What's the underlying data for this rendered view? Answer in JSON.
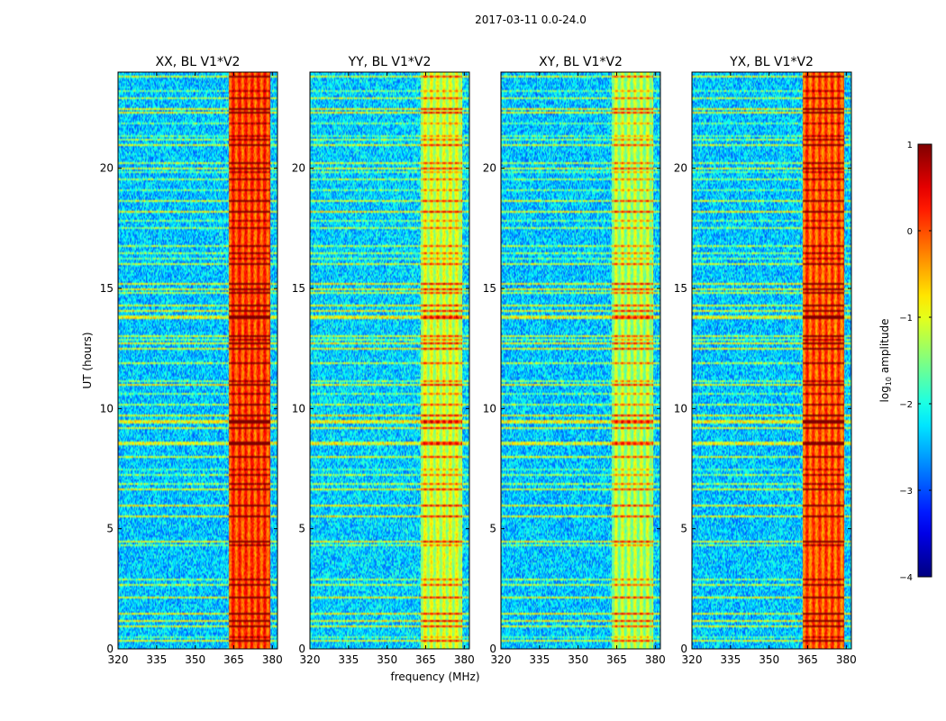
{
  "chart_data": {
    "type": "heatmap",
    "suptitle": "2017-03-11 0.0-24.0",
    "xlabel": "frequency (MHz)",
    "ylabel": "UT (hours)",
    "xlim": [
      320,
      382
    ],
    "ylim": [
      0,
      24
    ],
    "xticks": [
      320,
      335,
      350,
      365,
      380
    ],
    "xtick_labels": [
      "320",
      "335",
      "350",
      "365",
      "380"
    ],
    "yticks": [
      0,
      5,
      10,
      15,
      20
    ],
    "ytick_labels": [
      "0",
      "5",
      "10",
      "15",
      "20"
    ],
    "panels": [
      {
        "title": "XX, BL V1*V2",
        "base_level": -2.4,
        "band_level": 0.05,
        "band_start_mhz": 363,
        "band_end_mhz": 379
      },
      {
        "title": "YY, BL V1*V2",
        "base_level": -2.35,
        "band_level": -1.15,
        "band_start_mhz": 363,
        "band_end_mhz": 379
      },
      {
        "title": "XY, BL V1*V2",
        "base_level": -2.4,
        "band_level": -1.3,
        "band_start_mhz": 363,
        "band_end_mhz": 379
      },
      {
        "title": "YX, BL V1*V2",
        "base_level": -2.4,
        "band_level": -0.05,
        "band_start_mhz": 363,
        "band_end_mhz": 379
      }
    ],
    "colorbar": {
      "label": "log10 amplitude",
      "label_base": "log",
      "label_sub": "10",
      "label_rest": " amplitude",
      "min": -4,
      "max": 1,
      "ticks": [
        1,
        0,
        -1,
        -2,
        -3,
        -4
      ],
      "tick_labels": [
        "1",
        "0",
        "−1",
        "−2",
        "−3",
        "−4"
      ],
      "colormap": "jet"
    }
  }
}
